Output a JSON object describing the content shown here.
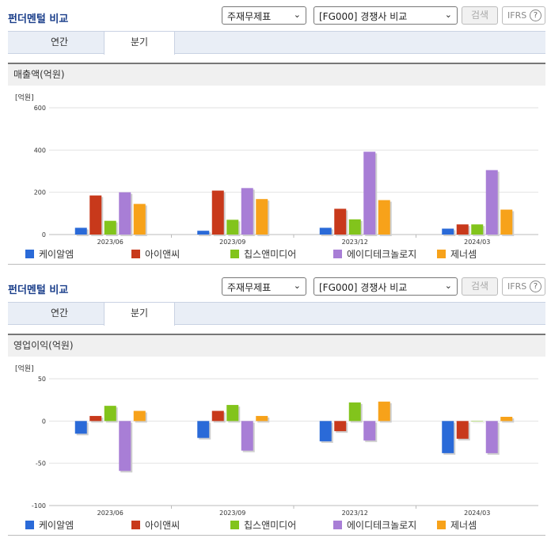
{
  "sections": [
    {
      "title": "펀더멘털 비교",
      "select_statement": "주재무제표",
      "select_peer": "[FG000] 경쟁사 비교",
      "search_label": "검색",
      "ifrs_label": "IFRS",
      "help_label": "?",
      "tabs": [
        {
          "label": "연간"
        },
        {
          "label": "분기"
        }
      ],
      "active_tab": 1,
      "metric_label": "매출액(억원)"
    },
    {
      "title": "펀더멘털 비교",
      "select_statement": "주재무제표",
      "select_peer": "[FG000] 경쟁사 비교",
      "search_label": "검색",
      "ifrs_label": "IFRS",
      "help_label": "?",
      "tabs": [
        {
          "label": "연간"
        },
        {
          "label": "분기"
        }
      ],
      "active_tab": 1,
      "metric_label": "영업이익(억원)"
    }
  ],
  "colors": {
    "series": [
      "#2a6ad8",
      "#c8391b",
      "#82c41c",
      "#a87ed6",
      "#f7a21a"
    ]
  },
  "chart_data": [
    {
      "type": "bar",
      "unit_label": "[억원]",
      "categories": [
        "2023/06",
        "2023/09",
        "2023/12",
        "2024/03"
      ],
      "ylim": [
        0,
        600
      ],
      "yticks": [
        0,
        200,
        400,
        600
      ],
      "series": [
        {
          "name": "케이알엠",
          "values": [
            32,
            18,
            32,
            28
          ]
        },
        {
          "name": "아이앤씨",
          "values": [
            185,
            208,
            122,
            48
          ]
        },
        {
          "name": "칩스앤미디어",
          "values": [
            65,
            70,
            72,
            48
          ]
        },
        {
          "name": "에이디테크놀로지",
          "values": [
            200,
            220,
            392,
            305
          ]
        },
        {
          "name": "제너셈",
          "values": [
            145,
            168,
            163,
            118
          ]
        }
      ],
      "grid": true,
      "legend": "bottom"
    },
    {
      "type": "bar",
      "unit_label": "[억원]",
      "categories": [
        "2023/06",
        "2023/09",
        "2023/12",
        "2024/03"
      ],
      "ylim": [
        -100,
        50
      ],
      "yticks": [
        -100,
        -50,
        0,
        50
      ],
      "series": [
        {
          "name": "케이알엠",
          "values": [
            -15,
            -20,
            -24,
            -38
          ]
        },
        {
          "name": "아이앤씨",
          "values": [
            6,
            12,
            -12,
            -21
          ]
        },
        {
          "name": "칩스앤미디어",
          "values": [
            18,
            19,
            22,
            0
          ]
        },
        {
          "name": "에이디테크놀로지",
          "values": [
            -59,
            -35,
            -23,
            -38
          ]
        },
        {
          "name": "제너셈",
          "values": [
            12,
            6,
            23,
            5
          ]
        }
      ],
      "grid": true,
      "legend": "bottom"
    }
  ]
}
